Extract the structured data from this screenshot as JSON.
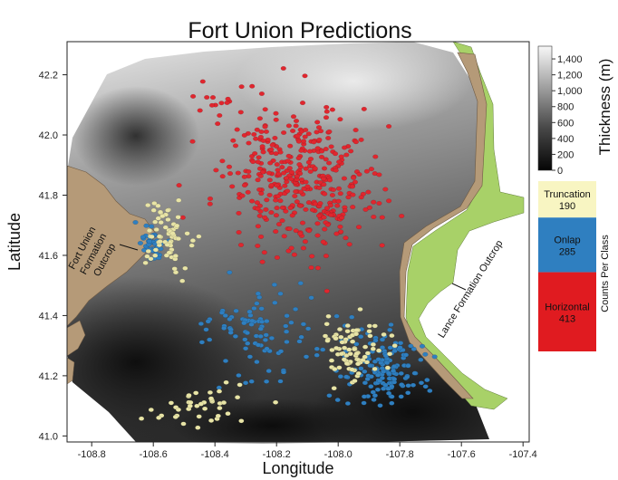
{
  "chart_data": {
    "type": "scatter",
    "title": "Fort Union Predictions",
    "xlabel": "Longitude",
    "ylabel": "Latitude",
    "xlim": [
      -108.88,
      -107.38
    ],
    "ylim": [
      40.98,
      42.31
    ],
    "x_ticks": [
      "-108.8",
      "-108.6",
      "-108.4",
      "-108.2",
      "-108.0",
      "-107.8",
      "-107.6",
      "-107.4"
    ],
    "y_ticks": [
      "41.0",
      "41.2",
      "41.4",
      "41.6",
      "41.8",
      "42.0",
      "42.2"
    ],
    "grid": false,
    "colorbar": {
      "label": "Thickness (m)",
      "min": 0,
      "max": 1560,
      "ticks": [
        "0",
        "200",
        "400",
        "600",
        "800",
        "1,000",
        "1,200",
        "1,400"
      ]
    },
    "class_counts_title": "Counts Per Class",
    "classes": [
      {
        "name": "Truncation",
        "count": "190",
        "color": "#f8f5c2"
      },
      {
        "name": "Onlap",
        "count": "285",
        "color": "#2f7fc0"
      },
      {
        "name": "Horizontal",
        "count": "413",
        "color": "#e01b20"
      }
    ],
    "annotations": [
      {
        "text": [
          "Fort Union",
          "Formation",
          "Outcrop"
        ]
      },
      {
        "text": [
          "Lance Formation Outcrop"
        ]
      }
    ],
    "colors": {
      "outcrop_tan": "#b59a78",
      "outcrop_green": "#a8d168",
      "truncation_point": "#e8e4a6",
      "onlap_point": "#2f7fc0",
      "horizontal_point": "#e0262e"
    },
    "series": [
      {
        "name": "Horizontal",
        "clusters": [
          {
            "center": [
              -108.15,
              41.88
            ],
            "spread": [
              0.22,
              0.2
            ],
            "n": 300
          },
          {
            "center": [
              -108.05,
              41.75
            ],
            "spread": [
              0.18,
              0.15
            ],
            "n": 100
          },
          {
            "center": [
              -108.4,
              42.1
            ],
            "spread": [
              0.1,
              0.05
            ],
            "n": 13
          }
        ]
      },
      {
        "name": "Onlap",
        "clusters": [
          {
            "center": [
              -107.85,
              41.22
            ],
            "spread": [
              0.12,
              0.1
            ],
            "n": 150
          },
          {
            "center": [
              -108.6,
              41.64
            ],
            "spread": [
              0.04,
              0.06
            ],
            "n": 45
          },
          {
            "center": [
              -108.25,
              41.35
            ],
            "spread": [
              0.2,
              0.15
            ],
            "n": 90
          }
        ]
      },
      {
        "name": "Truncation",
        "clusters": [
          {
            "center": [
              -108.55,
              41.68
            ],
            "spread": [
              0.07,
              0.12
            ],
            "n": 70
          },
          {
            "center": [
              -107.95,
              41.28
            ],
            "spread": [
              0.1,
              0.1
            ],
            "n": 80
          },
          {
            "center": [
              -108.45,
              41.1
            ],
            "spread": [
              0.15,
              0.07
            ],
            "n": 40
          }
        ]
      }
    ]
  }
}
